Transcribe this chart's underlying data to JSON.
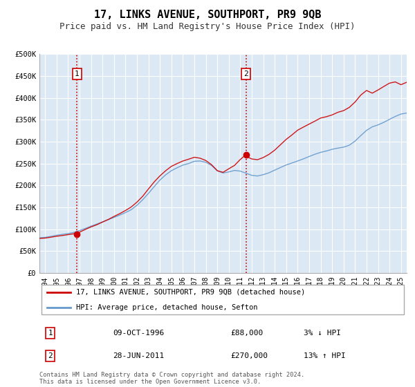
{
  "title": "17, LINKS AVENUE, SOUTHPORT, PR9 9QB",
  "subtitle": "Price paid vs. HM Land Registry's House Price Index (HPI)",
  "title_fontsize": 11,
  "subtitle_fontsize": 9,
  "background_color": "#ffffff",
  "plot_bg_color": "#dce9f5",
  "grid_color": "#ffffff",
  "red_line_color": "#cc0000",
  "blue_line_color": "#6699cc",
  "vline_color": "#cc0000",
  "sale1_year": 1996.78,
  "sale1_value": 88000,
  "sale2_year": 2011.49,
  "sale2_value": 270000,
  "ylim_min": 0,
  "ylim_max": 500000,
  "xlim_min": 1993.5,
  "xlim_max": 2025.5,
  "ytick_values": [
    0,
    50000,
    100000,
    150000,
    200000,
    250000,
    300000,
    350000,
    400000,
    450000,
    500000
  ],
  "ytick_labels": [
    "£0",
    "£50K",
    "£100K",
    "£150K",
    "£200K",
    "£250K",
    "£300K",
    "£350K",
    "£400K",
    "£450K",
    "£500K"
  ],
  "legend_label_red": "17, LINKS AVENUE, SOUTHPORT, PR9 9QB (detached house)",
  "legend_label_blue": "HPI: Average price, detached house, Sefton",
  "table_row1": [
    "1",
    "09-OCT-1996",
    "£88,000",
    "3% ↓ HPI"
  ],
  "table_row2": [
    "2",
    "28-JUN-2011",
    "£270,000",
    "13% ↑ HPI"
  ],
  "footnote": "Contains HM Land Registry data © Crown copyright and database right 2024.\nThis data is licensed under the Open Government Licence v3.0.",
  "hpi_x": [
    1993.5,
    1994.0,
    1994.5,
    1995.0,
    1995.5,
    1996.0,
    1996.5,
    1997.0,
    1997.5,
    1998.0,
    1998.5,
    1999.0,
    1999.5,
    2000.0,
    2000.5,
    2001.0,
    2001.5,
    2002.0,
    2002.5,
    2003.0,
    2003.5,
    2004.0,
    2004.5,
    2005.0,
    2005.5,
    2006.0,
    2006.5,
    2007.0,
    2007.5,
    2008.0,
    2008.5,
    2009.0,
    2009.5,
    2010.0,
    2010.5,
    2011.0,
    2011.5,
    2012.0,
    2012.5,
    2013.0,
    2013.5,
    2014.0,
    2014.5,
    2015.0,
    2015.5,
    2016.0,
    2016.5,
    2017.0,
    2017.5,
    2018.0,
    2018.5,
    2019.0,
    2019.5,
    2020.0,
    2020.5,
    2021.0,
    2021.5,
    2022.0,
    2022.5,
    2023.0,
    2023.5,
    2024.0,
    2024.5,
    2025.0,
    2025.5
  ],
  "hpi_y": [
    80000,
    81000,
    83000,
    85000,
    87000,
    89000,
    91000,
    95000,
    100000,
    105000,
    110000,
    115000,
    120000,
    126000,
    132000,
    138000,
    145000,
    155000,
    168000,
    183000,
    198000,
    213000,
    225000,
    235000,
    242000,
    248000,
    252000,
    257000,
    258000,
    255000,
    248000,
    235000,
    230000,
    233000,
    236000,
    235000,
    230000,
    226000,
    225000,
    228000,
    232000,
    238000,
    244000,
    250000,
    255000,
    260000,
    265000,
    270000,
    275000,
    280000,
    283000,
    287000,
    290000,
    292000,
    296000,
    305000,
    318000,
    330000,
    338000,
    342000,
    348000,
    355000,
    362000,
    368000,
    370000
  ],
  "prop_x": [
    1993.5,
    1994.0,
    1994.5,
    1995.0,
    1995.5,
    1996.0,
    1996.5,
    1996.78,
    1997.0,
    1997.5,
    1998.0,
    1998.5,
    1999.0,
    1999.5,
    2000.0,
    2000.5,
    2001.0,
    2001.5,
    2002.0,
    2002.5,
    2003.0,
    2003.5,
    2004.0,
    2004.5,
    2005.0,
    2005.5,
    2006.0,
    2006.5,
    2007.0,
    2007.5,
    2008.0,
    2008.5,
    2009.0,
    2009.5,
    2010.0,
    2010.5,
    2011.0,
    2011.49,
    2011.5,
    2012.0,
    2012.5,
    2013.0,
    2013.5,
    2014.0,
    2014.5,
    2015.0,
    2015.5,
    2016.0,
    2016.5,
    2017.0,
    2017.5,
    2018.0,
    2018.5,
    2019.0,
    2019.5,
    2020.0,
    2020.5,
    2021.0,
    2021.5,
    2022.0,
    2022.5,
    2023.0,
    2023.5,
    2024.0,
    2024.5,
    2025.0,
    2025.5
  ],
  "prop_y": [
    78000,
    79000,
    81000,
    83000,
    85000,
    87000,
    89000,
    88000,
    93000,
    99000,
    105000,
    110000,
    116000,
    122000,
    129000,
    136000,
    143000,
    151000,
    162000,
    176000,
    192000,
    208000,
    222000,
    233000,
    243000,
    250000,
    256000,
    261000,
    265000,
    263000,
    258000,
    248000,
    235000,
    231000,
    240000,
    248000,
    262000,
    270000,
    268000,
    262000,
    260000,
    265000,
    272000,
    282000,
    295000,
    308000,
    318000,
    328000,
    335000,
    342000,
    348000,
    355000,
    358000,
    362000,
    368000,
    372000,
    380000,
    392000,
    408000,
    418000,
    412000,
    420000,
    428000,
    435000,
    438000,
    432000,
    438000
  ]
}
